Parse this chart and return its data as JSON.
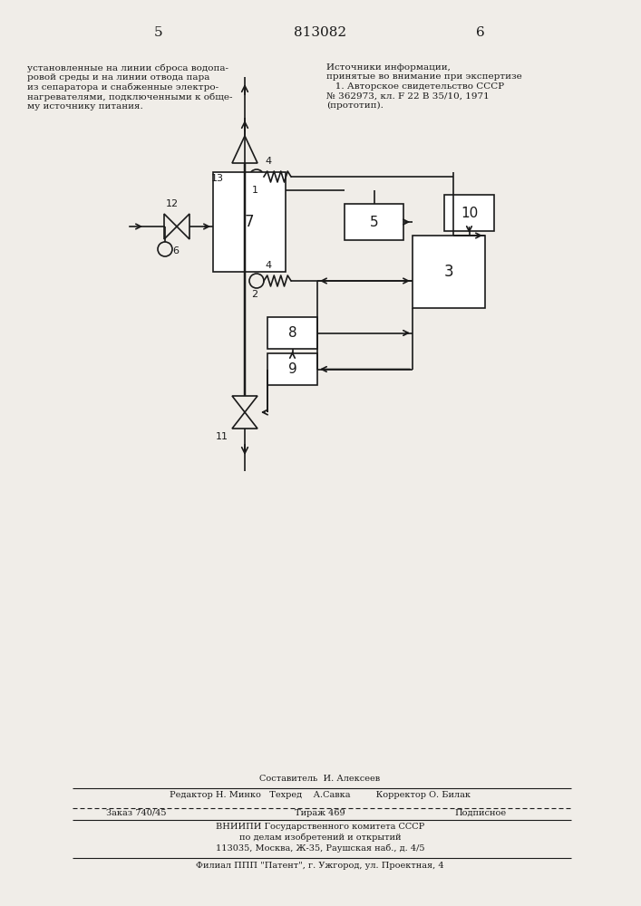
{
  "page_numbers": [
    "5",
    "6"
  ],
  "patent_number": "813082",
  "left_text": "установленные на линии сброса водопа-\nровой среды и на линии отвода пара\nиз сепаратора и снабженные электро-\nнагревателями, подключенными к обще-\nму источнику питания.",
  "right_text": "Источники информации,\nпринятые во внимание при экспертизе\n   1. Авторское свидетельство СССР\n№ 362973, кл. F 22 B 35/10, 1971\n(прототип).",
  "footer_line1": "Составитель  И. Алексеев",
  "footer_line2": "Редактор Н. Минко   Техред    А.Савка         Корректор О. Билак",
  "footer_line3": "Заказ 740/45          Тираж 469             Подписное",
  "footer_line4": "ВНИИПИ Государственного комитета СССР",
  "footer_line5": "по делам изобретений и открытий",
  "footer_line6": "113035, Москва, Ж-35, Раушская наб., д. 4/5",
  "footer_line7": "Филиал ППП \"Патент\", г. Ужгород, ул. Проектная, 4",
  "bg_color": "#f0ede8",
  "line_color": "#1a1a1a",
  "text_color": "#1a1a1a"
}
